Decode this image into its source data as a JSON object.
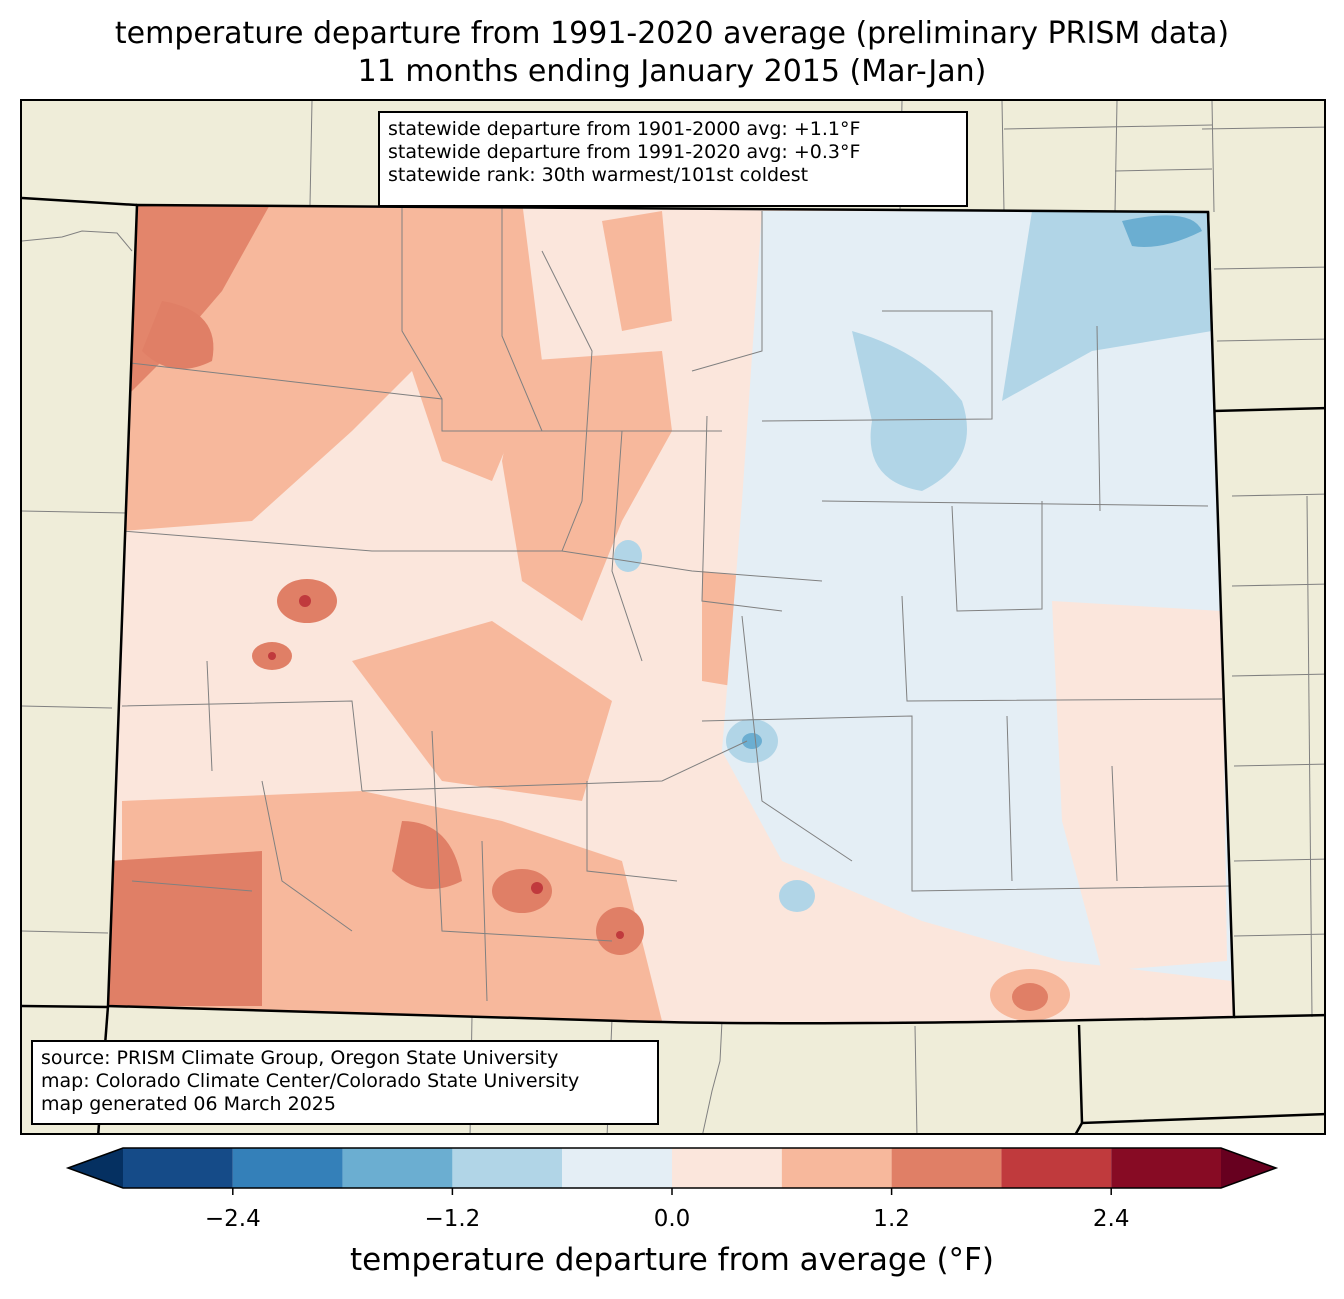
{
  "title": {
    "line1": "temperature departure from 1991-2020 average (preliminary PRISM data)",
    "line2": "11 months ending January 2015 (Mar-Jan)"
  },
  "stats_box": {
    "line1": "statewide departure from 1901-2000 avg: +1.1°F",
    "line2": "statewide departure from 1991-2020 avg: +0.3°F",
    "line3": "statewide rank: 30th warmest/101st coldest"
  },
  "source_box": {
    "line1": "source: PRISM Climate Group, Oregon State University",
    "line2": "map: Colorado Climate Center/Colorado State University",
    "line3": "map generated 06 March 2025"
  },
  "colorbar": {
    "label": "temperature departure from average (°F)",
    "ticks": [
      "−2.4",
      "−1.2",
      "0.0",
      "1.2",
      "2.4"
    ],
    "tick_values": [
      -2.4,
      -1.2,
      0.0,
      1.2,
      2.4
    ],
    "range": [
      -3.0,
      3.0
    ],
    "step": 0.6,
    "extend": "both",
    "colors": [
      "#053061",
      "#154b88",
      "#3480b9",
      "#6baed1",
      "#b1d5e7",
      "#e4eef5",
      "#fbe6dc",
      "#f7b89c",
      "#e07f66",
      "#c03a3d",
      "#870b24",
      "#67001f"
    ]
  },
  "map": {
    "background": "#efedd9",
    "boundary_color": "#000000",
    "county_color": "#808080"
  }
}
